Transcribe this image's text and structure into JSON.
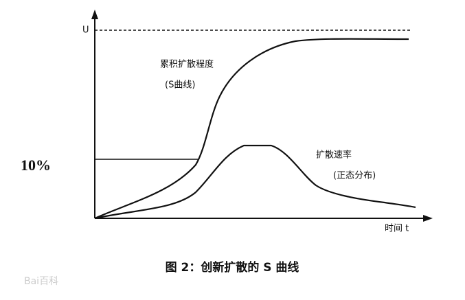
{
  "axis": {
    "y_label": "U",
    "x_label": "时间 t",
    "threshold_label": "10%"
  },
  "curves": {
    "cumulative": {
      "label": "累积扩散程度",
      "sublabel": "(S曲线)"
    },
    "rate": {
      "label": "扩散速率",
      "sublabel": "(正态分布)"
    }
  },
  "caption": "图 2：创新扩散的 S 曲线",
  "watermark": "Bai百科"
}
